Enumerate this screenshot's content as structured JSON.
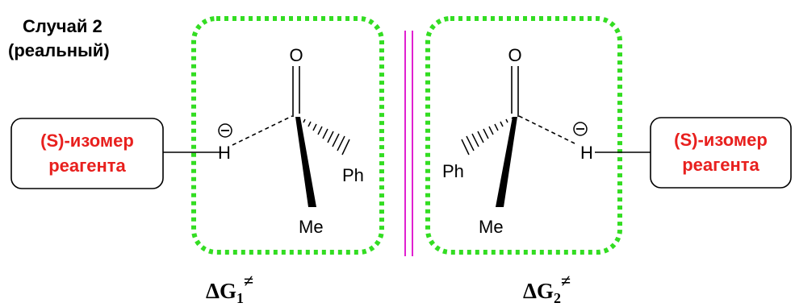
{
  "case_title": {
    "line1": "Случай 2",
    "line2": "(реальный)"
  },
  "reagent_left": {
    "line1": "(S)-изомер",
    "line2": "реагента"
  },
  "reagent_right": {
    "line1": "(S)-изомер",
    "line2": "реагента"
  },
  "ts_left": {
    "oxygen": "O",
    "hydride": "H",
    "charge": "−",
    "phenyl": "Ph",
    "methyl": "Me",
    "energy": {
      "delta": "Δ",
      "g": "G",
      "sub": "1",
      "sup": "≠"
    }
  },
  "ts_right": {
    "oxygen": "O",
    "hydride": "H",
    "charge": "−",
    "phenyl": "Ph",
    "methyl": "Me",
    "energy": {
      "delta": "Δ",
      "g": "G",
      "sub": "2",
      "sup": "≠"
    }
  },
  "colors": {
    "reagent_text": "#e8201e",
    "dotted_box": "#33dd22",
    "divider": "#e020d0",
    "ink": "#000000"
  }
}
